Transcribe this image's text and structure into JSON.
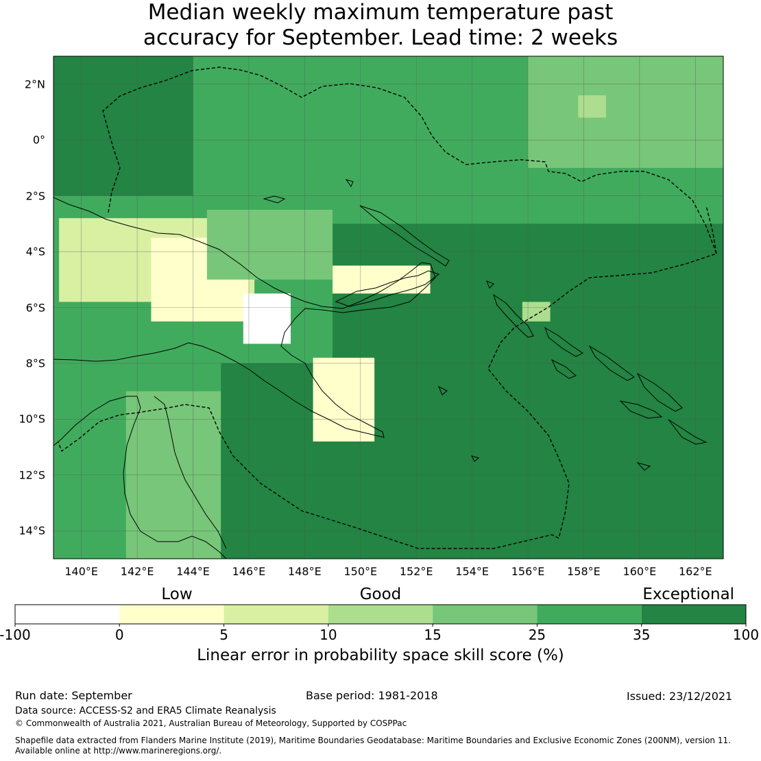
{
  "title": {
    "line1": "Median weekly maximum temperature past",
    "line2": "accuracy for September. Lead time: 2 weeks"
  },
  "map": {
    "lon_range": [
      139,
      163
    ],
    "lat_range": [
      -15,
      3
    ],
    "y_ticks": [
      {
        "lat": 2,
        "label": "2°N"
      },
      {
        "lat": 0,
        "label": "0°"
      },
      {
        "lat": -2,
        "label": "2°S"
      },
      {
        "lat": -4,
        "label": "4°S"
      },
      {
        "lat": -6,
        "label": "6°S"
      },
      {
        "lat": -8,
        "label": "8°S"
      },
      {
        "lat": -10,
        "label": "10°S"
      },
      {
        "lat": -12,
        "label": "12°S"
      },
      {
        "lat": -14,
        "label": "14°S"
      }
    ],
    "x_ticks": [
      {
        "lon": 140,
        "label": "140°E"
      },
      {
        "lon": 142,
        "label": "142°E"
      },
      {
        "lon": 144,
        "label": "144°E"
      },
      {
        "lon": 146,
        "label": "146°E"
      },
      {
        "lon": 148,
        "label": "148°E"
      },
      {
        "lon": 150,
        "label": "150°E"
      },
      {
        "lon": 152,
        "label": "152°E"
      },
      {
        "lon": 154,
        "label": "154°E"
      },
      {
        "lon": 156,
        "label": "156°E"
      },
      {
        "lon": 158,
        "label": "158°E"
      },
      {
        "lon": 160,
        "label": "160°E"
      },
      {
        "lon": 162,
        "label": "162°E"
      }
    ],
    "regions": [
      {
        "name": "west-australia-margin",
        "lon": 139,
        "lat": -15,
        "w": 3,
        "h": 10,
        "level": 5
      },
      {
        "name": "cape-york",
        "lon": 141.6,
        "lat": -15,
        "w": 3.4,
        "h": 6,
        "level": 4
      },
      {
        "name": "pacific-south",
        "lon": 145,
        "lat": -15,
        "w": 18,
        "h": 7,
        "level": 6
      },
      {
        "name": "central-deep",
        "lon": 149,
        "lat": -8,
        "w": 14,
        "h": 5,
        "level": 6
      },
      {
        "name": "north-west-ocean",
        "lon": 139,
        "lat": -2,
        "w": 5,
        "h": 5,
        "level": 6
      },
      {
        "name": "north-central",
        "lon": 144,
        "lat": -1,
        "w": 9,
        "h": 4,
        "level": 5
      },
      {
        "name": "north-east",
        "lon": 156,
        "lat": -1,
        "w": 7,
        "h": 4,
        "level": 4
      },
      {
        "name": "png-highlands-low",
        "lon": 139.2,
        "lat": -5.8,
        "w": 7,
        "h": 3,
        "level": 2
      },
      {
        "name": "png-core-low",
        "lon": 142.5,
        "lat": -6.5,
        "w": 3.5,
        "h": 3,
        "level": 1
      },
      {
        "name": "png-fly-river",
        "lon": 145.8,
        "lat": -7.3,
        "w": 1.7,
        "h": 1.8,
        "level": 0
      },
      {
        "name": "new-britain-low",
        "lon": 149,
        "lat": -5.5,
        "w": 3.5,
        "h": 1.0,
        "level": 1
      },
      {
        "name": "papuan-tail",
        "lon": 148.3,
        "lat": -10.8,
        "w": 2.2,
        "h": 3,
        "level": 1
      },
      {
        "name": "solomons-pocket",
        "lon": 155.8,
        "lat": -6.5,
        "w": 1.0,
        "h": 0.7,
        "level": 3
      },
      {
        "name": "central-png-mid",
        "lon": 144.5,
        "lat": -5.0,
        "w": 4.5,
        "h": 2.5,
        "level": 4
      },
      {
        "name": "north-pocket-light",
        "lon": 157.8,
        "lat": 0.8,
        "w": 1.0,
        "h": 0.8,
        "level": 3
      }
    ]
  },
  "legend": {
    "categories": [
      {
        "label": "Low",
        "tick_index": 1.55
      },
      {
        "label": "Good",
        "tick_index": 3.5
      },
      {
        "label": "Exceptional",
        "tick_index": 6.45
      }
    ],
    "colors": [
      "#ffffff",
      "#ffffcc",
      "#d9f0a3",
      "#addd8e",
      "#78c679",
      "#41ab5d",
      "#238443"
    ],
    "tick_labels": [
      "-100",
      "0",
      "5",
      "10",
      "15",
      "25",
      "35",
      "100"
    ],
    "label": "Linear error in probability space skill score (%)"
  },
  "footer": {
    "run_date": "Run date: September",
    "base_period": "Base period: 1981-2018",
    "issued": "Issued: 23/12/2021",
    "data_source": "Data source: ACCESS-S2 and ERA5 Climate Reanalysis",
    "copyright": "© Commonwealth of Australia 2021, Australian Bureau of Meteorology, Supported by COSPPac",
    "shapefile_line1": "Shapefile data extracted from Flanders Marine Institute (2019), Maritime Boundaries Geodatabase: Maritime Boundaries and Exclusive Economic Zones (200NM), version 11.",
    "shapefile_line2": "Available online at http://www.marineregions.org/."
  }
}
